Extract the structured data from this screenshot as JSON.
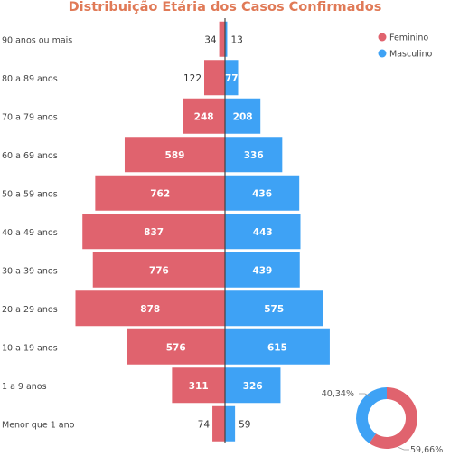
{
  "chart_data": {
    "type": "bar",
    "title": "Distribuição Etária dos Casos Confirmados",
    "categories": [
      "90 anos ou mais",
      "80 a 89 anos",
      "70 a 79 anos",
      "60 a 69 anos",
      "50 a 59 anos",
      "40 a 49 anos",
      "30 a 39 anos",
      "20 a 29 anos",
      "10 a 19 anos",
      "1 a 9 anos",
      "Menor que 1 ano"
    ],
    "series": [
      {
        "name": "Feminino",
        "color": "#e0636e",
        "values": [
          34,
          122,
          248,
          589,
          762,
          837,
          776,
          878,
          576,
          311,
          74
        ]
      },
      {
        "name": "Masculino",
        "color": "#3ea2f5",
        "values": [
          13,
          77,
          208,
          336,
          436,
          443,
          439,
          575,
          615,
          326,
          59
        ]
      }
    ],
    "legend_position": "top-right",
    "donut": {
      "slices": [
        {
          "name": "Feminino",
          "color": "#e0636e",
          "value": 59.66,
          "label": "59,66%"
        },
        {
          "name": "Masculino",
          "color": "#3ea2f5",
          "value": 40.34,
          "label": "40,34%"
        }
      ]
    }
  }
}
